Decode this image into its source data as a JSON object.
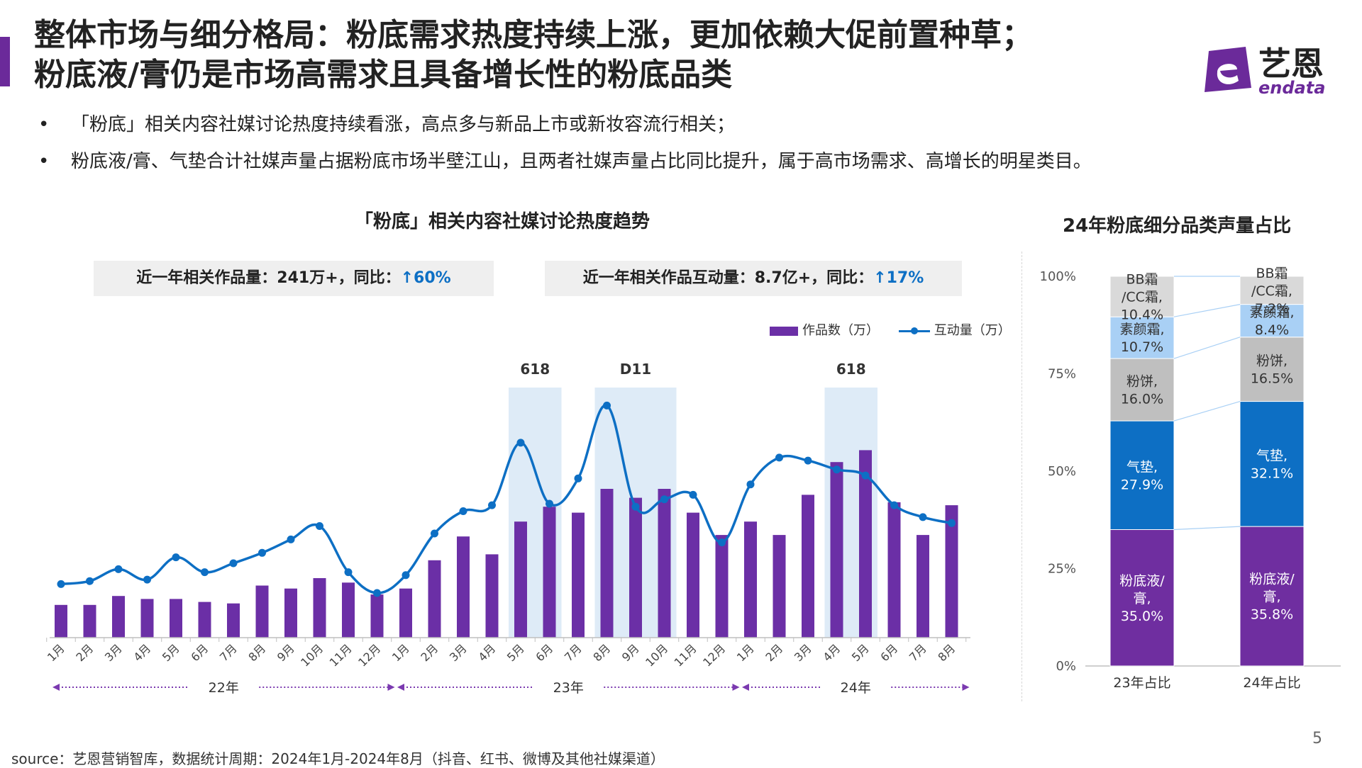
{
  "title": {
    "line1": "整体市场与细分格局：粉底需求热度持续上涨，更加依赖大促前置种草；",
    "line2": "粉底液/膏仍是市场高需求且具备增长性的粉底品类"
  },
  "logo": {
    "cn": "艺恩",
    "en": "endata"
  },
  "bullets": [
    "「粉底」相关内容社媒讨论热度持续看涨，高点多与新品上市或新妆容流行相关；",
    "粉底液/膏、气垫合计社媒声量占据粉底市场半壁江山，且两者社媒声量占比同比提升，属于高市场需求、高增长的明星类目。"
  ],
  "bullet_symbol": "•",
  "stats": [
    {
      "text": "近一年相关作品量：241万+，同比：",
      "up": "↑60%"
    },
    {
      "text": "近一年相关作品互动量：8.7亿+，同比：",
      "up": "↑17%"
    }
  ],
  "footer": "source：艺恩营销智库，数据统计周期：2024年1月-2024年8月（抖音、红书、微博及其他社媒渠道）",
  "page_number": "5",
  "colors": {
    "brand_purple": "#6b2a9a",
    "bar_purple": "#6b2fa6",
    "line_blue": "#0d6fc4",
    "highlight": "#deebf7",
    "up_arrow": "#0d6fc4"
  },
  "chart_data": [
    {
      "type": "bar",
      "title": "「粉底」相关内容社媒讨论热度趋势",
      "categories": [
        "1月",
        "2月",
        "3月",
        "4月",
        "5月",
        "6月",
        "7月",
        "8月",
        "9月",
        "10月",
        "11月",
        "12月",
        "1月",
        "2月",
        "3月",
        "4月",
        "5月",
        "6月",
        "7月",
        "8月",
        "9月",
        "10月",
        "11月",
        "12月",
        "1月",
        "2月",
        "3月",
        "4月",
        "5月",
        "6月",
        "7月",
        "8月"
      ],
      "year_groups": [
        {
          "label": "22年",
          "start": 0,
          "end": 11
        },
        {
          "label": "23年",
          "start": 12,
          "end": 23
        },
        {
          "label": "24年",
          "start": 24,
          "end": 31
        }
      ],
      "series": [
        {
          "name": "作品数（万）",
          "type": "bar",
          "values": [
            11,
            11,
            14,
            13,
            13,
            12,
            11.5,
            17.5,
            16.5,
            20,
            18.5,
            14.5,
            16.5,
            26,
            34,
            28,
            39,
            44,
            42,
            50,
            47,
            50,
            42,
            34.5,
            39,
            34.5,
            48,
            59,
            63,
            45.5,
            34.5,
            44.5
          ]
        },
        {
          "name": "互动量（万）",
          "type": "line",
          "values": [
            18,
            19,
            23,
            19.5,
            27,
            22,
            25,
            28.5,
            33,
            37.5,
            22,
            15,
            21,
            35,
            42.5,
            44.5,
            65.5,
            45,
            53.5,
            78,
            44,
            46.5,
            48,
            32,
            51.5,
            60.5,
            59.5,
            56.5,
            54.5,
            44.5,
            40.5,
            38.5
          ]
        }
      ],
      "highlights": [
        {
          "label": "618",
          "from": 16,
          "to": 17
        },
        {
          "label": "D11",
          "from": 19,
          "to": 21
        },
        {
          "label": "618",
          "from": 27,
          "to": 28
        }
      ],
      "grid": false,
      "legend": "top-right"
    },
    {
      "type": "bar",
      "stacked": true,
      "title": "24年粉底细分品类声量占比",
      "categories": [
        "23年占比",
        "24年占比"
      ],
      "yticks": [
        "0%",
        "25%",
        "50%",
        "75%",
        "100%"
      ],
      "ylim": [
        0,
        100
      ],
      "series": [
        {
          "name": "粉底液/膏",
          "values": [
            35.0,
            35.8
          ],
          "color": "#6f2ea0",
          "text_color": "#ffffff",
          "labels": [
            [
              "粉底液/",
              "膏,",
              "35.0%"
            ],
            [
              "粉底液/",
              "膏,",
              "35.8%"
            ]
          ]
        },
        {
          "name": "气垫",
          "values": [
            27.9,
            32.1
          ],
          "color": "#0d6fc4",
          "text_color": "#ffffff",
          "labels": [
            [
              "气垫,",
              "27.9%"
            ],
            [
              "气垫,",
              "32.1%"
            ]
          ]
        },
        {
          "name": "粉饼",
          "values": [
            16.0,
            16.5
          ],
          "color": "#bfbfbf",
          "text_color": "#333333",
          "labels": [
            [
              "粉饼,",
              "16.0%"
            ],
            [
              "粉饼,",
              "16.5%"
            ]
          ]
        },
        {
          "name": "素颜霜",
          "values": [
            10.7,
            8.4
          ],
          "color": "#a9d0f5",
          "text_color": "#333333",
          "labels": [
            [
              "素颜霜,",
              "10.7%"
            ],
            [
              "素颜霜,",
              "8.4%"
            ]
          ]
        },
        {
          "name": "BB霜/CC霜",
          "values": [
            10.4,
            7.2
          ],
          "color": "#d9d9d9",
          "text_color": "#333333",
          "labels": [
            [
              "BB霜",
              "/CC霜,",
              "10.4%"
            ],
            [
              "BB霜",
              "/CC霜,",
              "7.2%"
            ]
          ]
        }
      ],
      "grid": false
    }
  ]
}
